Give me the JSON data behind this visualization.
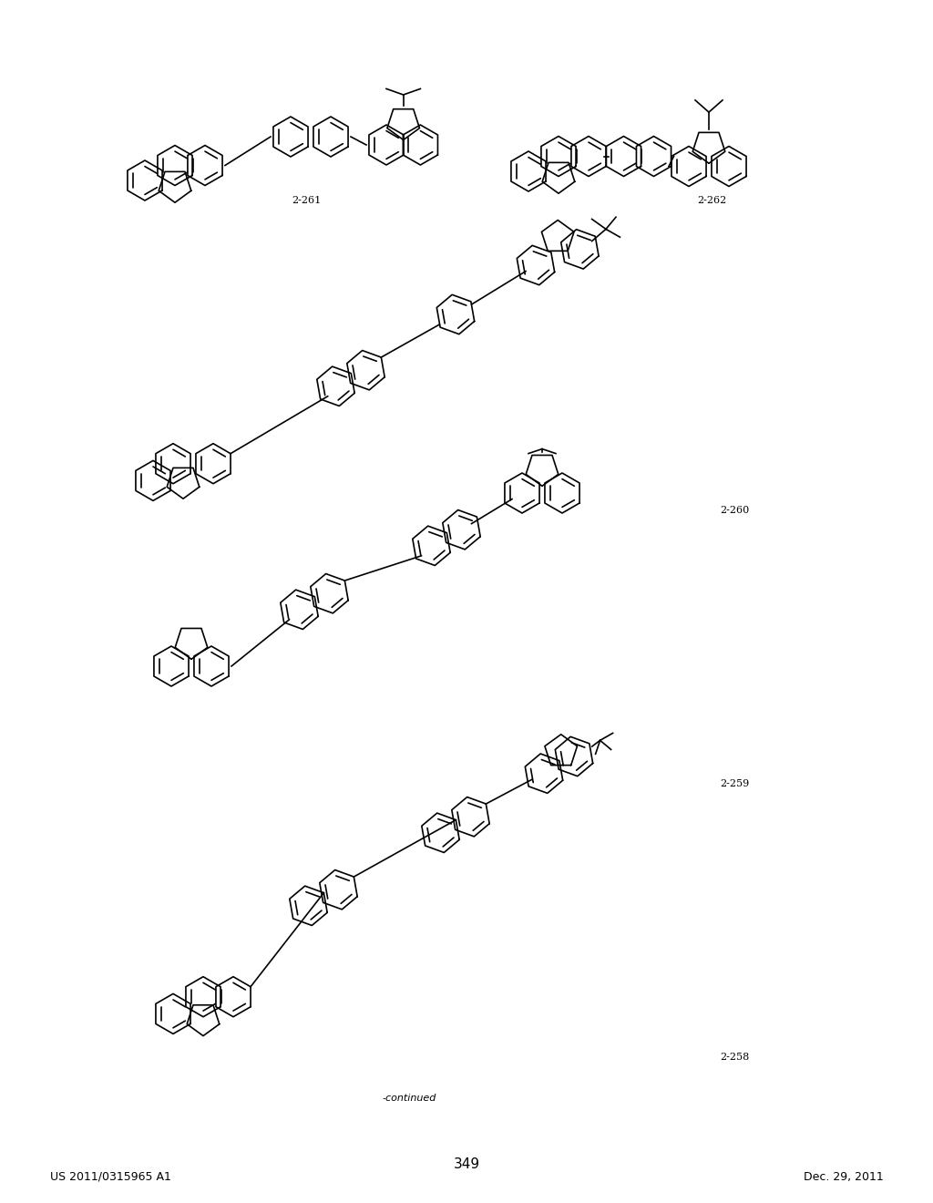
{
  "page_number": "349",
  "patent_number": "US 2011/0315965 A1",
  "date": "Dec. 29, 2011",
  "continued_label": "-continued",
  "compound_labels": [
    "2-258",
    "2-259",
    "2-260",
    "2-261",
    "2-262"
  ],
  "background_color": "#ffffff",
  "line_color": "#000000",
  "text_color": "#000000",
  "font_size_header": 9,
  "font_size_page": 11,
  "font_size_label": 8
}
